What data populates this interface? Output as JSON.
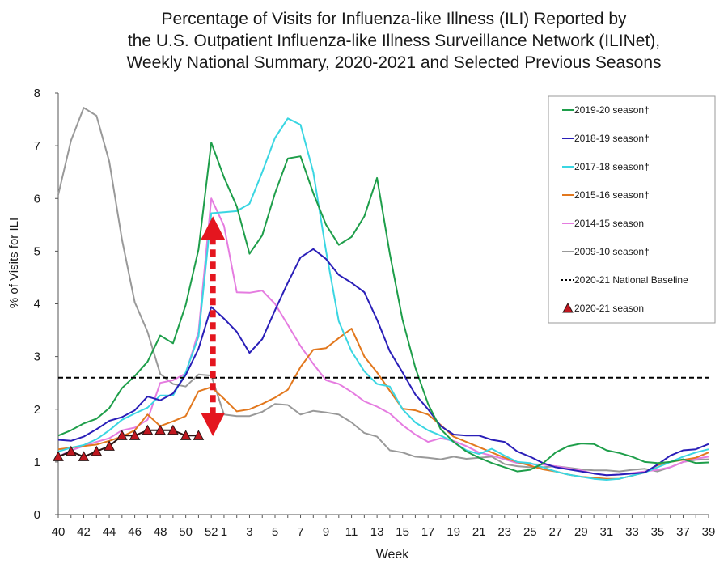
{
  "chart_data": {
    "type": "line",
    "title": [
      "Percentage of Visits for Influenza-like Illness (ILI) Reported by",
      "the U.S. Outpatient Influenza-like Illness Surveillance Network (ILINet),",
      "Weekly National Summary, 2020-2021 and Selected Previous Seasons"
    ],
    "xlabel": "Week",
    "ylabel": "% of Visits for ILI",
    "ylim": [
      0,
      8
    ],
    "yticks": [
      0,
      1,
      2,
      3,
      4,
      5,
      6,
      7,
      8
    ],
    "weeks": [
      40,
      41,
      42,
      43,
      44,
      45,
      46,
      47,
      48,
      49,
      50,
      51,
      52,
      1,
      2,
      3,
      4,
      5,
      6,
      7,
      8,
      9,
      10,
      11,
      12,
      13,
      14,
      15,
      16,
      17,
      18,
      19,
      20,
      21,
      22,
      23,
      24,
      25,
      26,
      27,
      28,
      29,
      30,
      31,
      32,
      33,
      34,
      35,
      36,
      37,
      38,
      39
    ],
    "xtick_labels": [
      "40",
      "42",
      "44",
      "46",
      "48",
      "50",
      "52",
      "1",
      "3",
      "5",
      "7",
      "9",
      "11",
      "13",
      "15",
      "17",
      "19",
      "21",
      "23",
      "25",
      "27",
      "29",
      "31",
      "33",
      "35",
      "37",
      "39"
    ],
    "grid": false,
    "legend_position": "top-right",
    "series": [
      {
        "name": "2019-20 season†",
        "color": "#1e9e4a",
        "values": [
          1.5,
          1.6,
          1.73,
          1.82,
          2.02,
          2.4,
          2.63,
          2.9,
          3.4,
          3.25,
          3.98,
          5.03,
          7.06,
          6.4,
          5.85,
          4.95,
          5.3,
          6.1,
          6.76,
          6.8,
          6.1,
          5.5,
          5.12,
          5.27,
          5.66,
          6.39,
          4.95,
          3.7,
          2.79,
          2.1,
          1.62,
          1.38,
          1.2,
          1.08,
          0.98,
          0.9,
          0.82,
          0.85,
          0.97,
          1.18,
          1.3,
          1.35,
          1.34,
          1.22,
          1.17,
          1.1,
          1.0,
          0.98,
          1.0,
          1.05,
          0.98,
          0.99
        ]
      },
      {
        "name": "2018-19 season†",
        "color": "#2a1fb8",
        "values": [
          1.42,
          1.4,
          1.48,
          1.62,
          1.78,
          1.85,
          1.98,
          2.24,
          2.17,
          2.3,
          2.65,
          3.15,
          3.94,
          3.72,
          3.47,
          3.07,
          3.33,
          3.88,
          4.4,
          4.88,
          5.04,
          4.85,
          4.55,
          4.4,
          4.22,
          3.7,
          3.1,
          2.7,
          2.28,
          2.0,
          1.68,
          1.52,
          1.5,
          1.5,
          1.42,
          1.38,
          1.2,
          1.1,
          0.98,
          0.9,
          0.86,
          0.82,
          0.78,
          0.75,
          0.76,
          0.78,
          0.8,
          0.95,
          1.12,
          1.22,
          1.24,
          1.34
        ]
      },
      {
        "name": "2017-18 season†",
        "color": "#3ad6e2",
        "values": [
          1.2,
          1.27,
          1.32,
          1.43,
          1.6,
          1.8,
          1.92,
          2.03,
          2.26,
          2.26,
          2.7,
          3.38,
          5.72,
          5.74,
          5.76,
          5.9,
          6.5,
          7.15,
          7.52,
          7.4,
          6.5,
          5.0,
          3.67,
          3.1,
          2.72,
          2.48,
          2.43,
          2.0,
          1.75,
          1.6,
          1.5,
          1.38,
          1.22,
          1.15,
          1.25,
          1.12,
          1.0,
          0.98,
          0.9,
          0.82,
          0.76,
          0.72,
          0.68,
          0.66,
          0.68,
          0.74,
          0.8,
          0.9,
          1.0,
          1.1,
          1.18,
          1.24
        ]
      },
      {
        "name": "2015-16 season†",
        "color": "#e2781e",
        "values": [
          1.24,
          1.27,
          1.3,
          1.33,
          1.4,
          1.48,
          1.6,
          1.9,
          1.68,
          1.77,
          1.87,
          2.34,
          2.42,
          2.2,
          1.96,
          2.0,
          2.1,
          2.22,
          2.37,
          2.8,
          3.13,
          3.16,
          3.35,
          3.53,
          3.0,
          2.7,
          2.35,
          2.01,
          1.98,
          1.9,
          1.7,
          1.48,
          1.38,
          1.28,
          1.18,
          1.08,
          1.0,
          0.93,
          0.86,
          0.82,
          0.76,
          0.72,
          0.7,
          0.68,
          0.68,
          0.74,
          0.8,
          0.94,
          1.0,
          1.04,
          1.08,
          1.18
        ]
      },
      {
        "name": "2014-15 season",
        "color": "#e57ce0",
        "values": [
          1.1,
          1.22,
          1.3,
          1.38,
          1.45,
          1.6,
          1.65,
          1.8,
          2.5,
          2.55,
          2.68,
          3.47,
          6.0,
          5.48,
          4.22,
          4.21,
          4.25,
          4.0,
          3.6,
          3.2,
          2.86,
          2.55,
          2.48,
          2.33,
          2.15,
          2.05,
          1.92,
          1.7,
          1.52,
          1.38,
          1.45,
          1.4,
          1.3,
          1.18,
          1.12,
          1.05,
          0.98,
          0.96,
          0.95,
          0.92,
          0.88,
          0.84,
          0.78,
          0.75,
          0.76,
          0.79,
          0.82,
          0.85,
          0.9,
          1.0,
          1.06,
          1.1
        ]
      },
      {
        "name": "2009-10 season†",
        "color": "#999999",
        "values": [
          6.07,
          7.1,
          7.72,
          7.57,
          6.7,
          5.22,
          4.03,
          3.47,
          2.67,
          2.48,
          2.43,
          2.66,
          2.64,
          1.9,
          1.87,
          1.87,
          1.95,
          2.1,
          2.08,
          1.9,
          1.97,
          1.94,
          1.9,
          1.75,
          1.55,
          1.48,
          1.22,
          1.18,
          1.1,
          1.08,
          1.05,
          1.1,
          1.06,
          1.08,
          1.1,
          0.96,
          0.92,
          0.9,
          0.9,
          0.92,
          0.89,
          0.86,
          0.84,
          0.84,
          0.82,
          0.85,
          0.87,
          0.82,
          0.9,
          1.0,
          1.04,
          1.05
        ]
      },
      {
        "name": "2020-21 National Baseline",
        "color": "#000000",
        "dashed": true,
        "values": [
          2.6,
          2.6,
          2.6,
          2.6,
          2.6,
          2.6,
          2.6,
          2.6,
          2.6,
          2.6,
          2.6,
          2.6,
          2.6,
          2.6,
          2.6,
          2.6,
          2.6,
          2.6,
          2.6,
          2.6,
          2.6,
          2.6,
          2.6,
          2.6,
          2.6,
          2.6,
          2.6,
          2.6,
          2.6,
          2.6,
          2.6,
          2.6,
          2.6,
          2.6,
          2.6,
          2.6,
          2.6,
          2.6,
          2.6,
          2.6,
          2.6,
          2.6,
          2.6,
          2.6,
          2.6,
          2.6,
          2.6,
          2.6,
          2.6,
          2.6,
          2.6,
          2.6
        ]
      },
      {
        "name": "2020-21 season",
        "color": "#c0171f",
        "marker": "triangle",
        "values": [
          1.1,
          1.2,
          1.1,
          1.2,
          1.3,
          1.5,
          1.5,
          1.6,
          1.6,
          1.6,
          1.5,
          1.5
        ]
      }
    ],
    "annotation": {
      "type": "double-arrow",
      "color": "#e4161f",
      "week": 52,
      "from": 5.6,
      "to": 1.55
    }
  }
}
